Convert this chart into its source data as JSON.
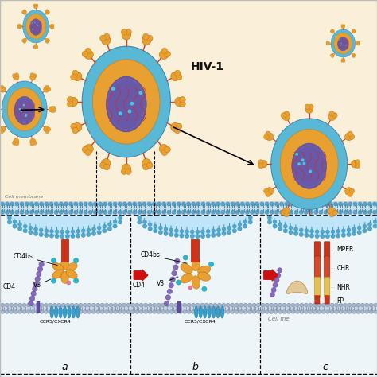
{
  "bg_top_color": "#faefd8",
  "bg_bottom_color": "#f0f7fa",
  "hiv1_label": "HIV-1",
  "cell_membrane_label": "Cell membrane",
  "cell_mem_label": "Cell me",
  "panel_labels": [
    "a",
    "b",
    "c"
  ],
  "virus_blue": "#58b8d5",
  "virus_orange": "#e8a030",
  "virus_core_purple": "#6858a8",
  "spike_orange": "#e8a030",
  "spike_red": "#d04020",
  "membrane_gray": "#c8c8c8",
  "membrane_blue_head": "#50a8cc",
  "membrane_blue_tail": "#3898bc",
  "tcell_head": "#a8b8cc",
  "tcell_tail": "#8898ac",
  "env_stem_red": "#cc3318",
  "env_petal_orange": "#e8a030",
  "env_tip_teal": "#28b8c8",
  "env_tip_pink": "#e87898",
  "cd4_purple": "#8868b8",
  "cd4_tm_purple": "#6848a0",
  "coreceptor_blue": "#38a0c8",
  "chr_red": "#cc3318",
  "nhr_yellow": "#e8c050",
  "mper_red": "#cc3318",
  "fp_red": "#cc3318",
  "nhr_coil_tan": "#e0c898",
  "arrow_red": "#cc1010",
  "black_arrow": "#111111",
  "text_gray": "#707070"
}
